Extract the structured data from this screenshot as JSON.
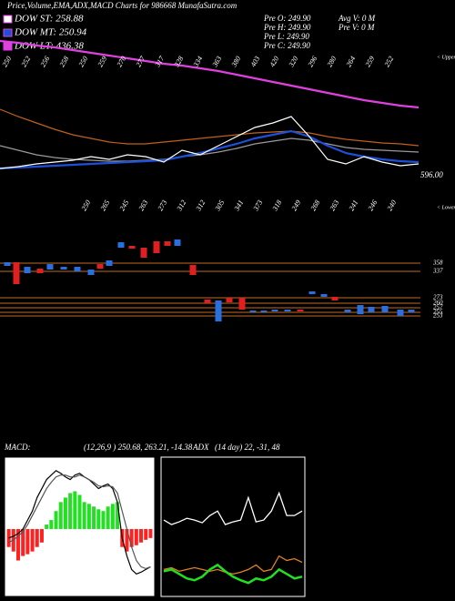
{
  "header": {
    "title": "Price,Volume,EMA,ADX,MACD Charts for 986668 MunafaSutra.com",
    "legend": [
      {
        "label": "DOW ST: 258.88",
        "color": "#ffffff"
      },
      {
        "label": "DOW MT: 250.94",
        "color": "#1e4fd8"
      },
      {
        "label": "DOW LT: 436.38",
        "color": "#e040e0"
      }
    ],
    "info": [
      "Pre O: 249.90",
      "Pre H: 249.90",
      "Pre L: 249.90",
      "Pre C: 249.90",
      "Avg V: 0 M",
      "Pre V: 0 M"
    ]
  },
  "chart_data": [
    {
      "type": "line",
      "ylim": [
        0,
        200
      ],
      "top_labels": [
        "250",
        "252",
        "256",
        "258",
        "250",
        "259",
        "270",
        "277",
        "317",
        "328",
        "334",
        "363",
        "380",
        "403",
        "420",
        "320",
        "296",
        "280",
        "264",
        "259",
        "252"
      ],
      "bottom_labels": [
        "250",
        "265",
        "245",
        "263",
        "273",
        "312",
        "312",
        "305",
        "341",
        "373",
        "318",
        "249",
        "268",
        "263",
        "241",
        "246",
        "240"
      ],
      "upper_label": "< Upper",
      "lower_label": "< Lower",
      "price_label": "596.00",
      "series": [
        {
          "color": "#e040e0",
          "values": [
            155,
            153,
            150,
            148,
            145,
            142,
            139,
            136,
            133,
            130,
            128,
            125,
            122,
            118,
            114,
            110,
            106,
            102,
            98,
            94,
            90,
            87,
            84,
            82
          ]
        },
        {
          "color": "#c0601a",
          "values": [
            80,
            72,
            65,
            58,
            52,
            48,
            44,
            42,
            42,
            44,
            46,
            48,
            50,
            52,
            54,
            55,
            56,
            54,
            50,
            47,
            45,
            43,
            42,
            40
          ]
        },
        {
          "color": "#9a9a9a",
          "values": [
            40,
            35,
            30,
            27,
            25,
            24,
            23,
            23,
            24,
            25,
            28,
            30,
            33,
            37,
            42,
            45,
            48,
            46,
            42,
            38,
            36,
            35,
            34,
            33
          ]
        },
        {
          "color": "#1e4fd8",
          "values": [
            15,
            16,
            17,
            18,
            19,
            20,
            21,
            22,
            23,
            24,
            28,
            32,
            37,
            42,
            48,
            52,
            56,
            50,
            40,
            32,
            28,
            25,
            23,
            22
          ]
        },
        {
          "color": "#ffffff",
          "values": [
            15,
            17,
            20,
            22,
            24,
            28,
            25,
            30,
            28,
            22,
            35,
            30,
            40,
            50,
            60,
            65,
            72,
            50,
            25,
            20,
            28,
            22,
            18,
            20
          ]
        }
      ]
    },
    {
      "type": "candlestick",
      "ylim": [
        0,
        120
      ],
      "up_color": "#2a6fe0",
      "down_color": "#e02020",
      "level_color": "#c06a20",
      "x": [
        8,
        18,
        30,
        44,
        55,
        70,
        85,
        100,
        110,
        120,
        133,
        145,
        158,
        172,
        184,
        195,
        212,
        228,
        240,
        252,
        266,
        278,
        290,
        302,
        316,
        330,
        343,
        356,
        368,
        382,
        396,
        408,
        423,
        440,
        452
      ],
      "open": [
        68,
        72,
        60,
        65,
        64,
        64,
        62,
        58,
        70,
        68,
        88,
        90,
        88,
        95,
        95,
        90,
        69,
        31,
        7,
        33,
        33,
        17,
        17,
        18,
        18,
        20,
        37,
        34,
        34,
        17,
        15,
        17,
        17,
        13,
        17
      ],
      "close": [
        72,
        48,
        67,
        60,
        70,
        67,
        67,
        64,
        65,
        74,
        94,
        87,
        77,
        82,
        90,
        97,
        58,
        27,
        30,
        28,
        20,
        19,
        19,
        20,
        20,
        18,
        40,
        37,
        30,
        20,
        25,
        23,
        24,
        20,
        20
      ],
      "levels": [
        {
          "value": 71,
          "label": "358"
        },
        {
          "value": 62,
          "label": "337"
        },
        {
          "value": 33,
          "label": "273"
        },
        {
          "value": 27,
          "label": "260"
        },
        {
          "value": 22,
          "label": "257"
        },
        {
          "value": 17,
          "label": "255"
        },
        {
          "value": 13,
          "label": "253"
        }
      ]
    },
    {
      "type": "macd",
      "ylim": [
        -75,
        80
      ],
      "label": "MACD:",
      "params": "(12,26,9 ) 250.68, 263.21, -14.38",
      "histogram": [
        -20,
        -25,
        -35,
        -30,
        -28,
        -25,
        -20,
        -15,
        5,
        10,
        20,
        30,
        35,
        40,
        42,
        38,
        30,
        28,
        25,
        22,
        20,
        25,
        28,
        30,
        -20,
        -25,
        -20,
        -18,
        -15,
        -12,
        -10
      ],
      "pos_color": "#22e022",
      "neg_color": "#ff2020",
      "series": [
        {
          "color": "#000000",
          "values": [
            -10,
            -8,
            -5,
            0,
            10,
            20,
            35,
            45,
            55,
            60,
            65,
            62,
            58,
            55,
            60,
            62,
            58,
            55,
            50,
            45,
            48,
            50,
            45,
            30,
            -10,
            -30,
            -45,
            -50,
            -48,
            -45,
            -42
          ]
        },
        {
          "color": "#555555",
          "values": [
            -15,
            -12,
            -8,
            -3,
            5,
            15,
            25,
            35,
            45,
            52,
            58,
            60,
            60,
            58,
            58,
            60,
            58,
            55,
            52,
            48,
            47,
            48,
            47,
            40,
            20,
            0,
            -20,
            -35,
            -42,
            -44,
            -42
          ]
        }
      ]
    },
    {
      "type": "adx",
      "ylim": [
        0,
        155
      ],
      "label": "ADX",
      "params": "(14 day) 22, -31, 48",
      "series": [
        {
          "color": "#ffffff",
          "values": [
            85,
            80,
            83,
            87,
            85,
            82,
            90,
            95,
            80,
            83,
            85,
            110,
            83,
            85,
            95,
            115,
            90,
            90,
            95
          ]
        },
        {
          "color": "#e08020",
          "values": [
            30,
            32,
            28,
            30,
            32,
            30,
            28,
            30,
            27,
            25,
            27,
            30,
            35,
            28,
            30,
            45,
            40,
            42,
            38
          ]
        },
        {
          "color": "#20e020",
          "values": [
            28,
            30,
            25,
            20,
            18,
            22,
            30,
            35,
            28,
            22,
            18,
            15,
            20,
            18,
            22,
            30,
            25,
            20,
            22
          ]
        }
      ]
    }
  ]
}
